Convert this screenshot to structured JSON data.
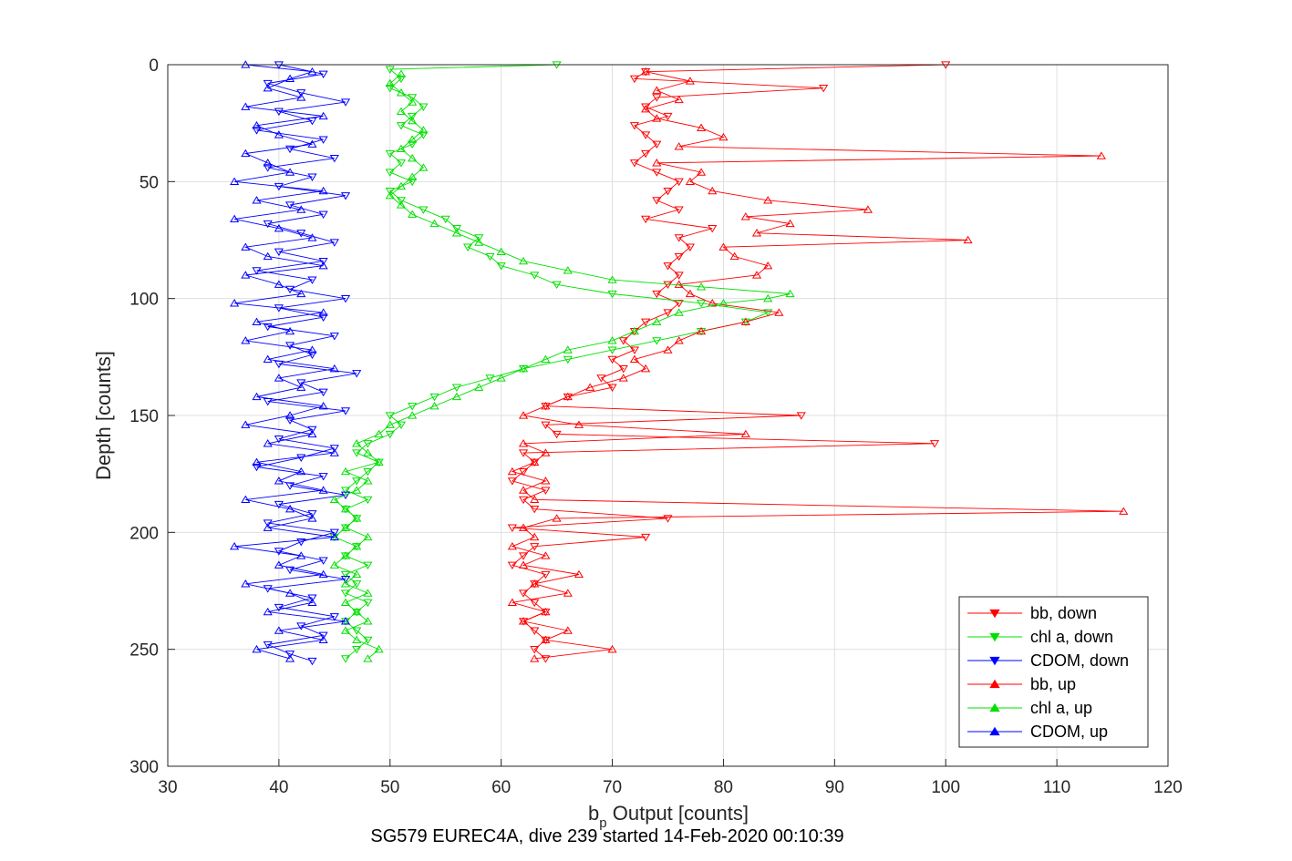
{
  "chart_data": {
    "type": "line",
    "title": "",
    "subtitle": "SG579 EUREC4A, dive 239 started 14-Feb-2020 00:10:39",
    "xlabel": {
      "main": "b",
      "sub": "p",
      "rest": " Output [counts]"
    },
    "ylabel": "Depth [counts]",
    "xlim": [
      30,
      120
    ],
    "ylim": [
      0,
      300
    ],
    "y_reversed": true,
    "grid": true,
    "legend_position": "bottom-right",
    "x_ticks": [
      "30",
      "40",
      "50",
      "60",
      "70",
      "80",
      "90",
      "100",
      "110",
      "120"
    ],
    "y_ticks": [
      "0",
      "50",
      "100",
      "150",
      "200",
      "250",
      "300"
    ],
    "colors": {
      "bb": "#ff0000",
      "chl": "#00e000",
      "cdom": "#0000ff"
    },
    "series": [
      {
        "name": "bb, down",
        "color": "#ff0000",
        "marker": "triangle-down",
        "depth": [
          0,
          3,
          6,
          10,
          14,
          18,
          22,
          26,
          30,
          34,
          38,
          42,
          46,
          50,
          54,
          58,
          62,
          66,
          70,
          74,
          78,
          82,
          86,
          90,
          94,
          98,
          102,
          106,
          110,
          114,
          118,
          122,
          126,
          130,
          134,
          138,
          142,
          146,
          150,
          154,
          158,
          162,
          166,
          170,
          174,
          178,
          182,
          186,
          190,
          194,
          198,
          202,
          206,
          210,
          214,
          218,
          222,
          226,
          230,
          234,
          238,
          242,
          246,
          250,
          254
        ],
        "value": [
          100,
          73,
          72,
          89,
          74,
          73,
          75,
          72,
          73,
          74,
          73,
          72,
          74,
          76,
          75,
          74,
          76,
          73,
          79,
          76,
          77,
          76,
          75,
          76,
          75,
          74,
          76,
          75,
          73,
          72,
          71,
          72,
          70,
          71,
          69,
          70,
          66,
          64,
          87,
          64,
          65,
          99,
          62,
          63,
          62,
          61,
          64,
          62,
          63,
          75,
          61,
          73,
          63,
          62,
          61,
          64,
          63,
          62,
          63,
          64,
          62,
          63,
          64,
          63,
          64
        ]
      },
      {
        "name": "chl a, down",
        "color": "#00e000",
        "marker": "triangle-down",
        "depth": [
          0,
          2,
          6,
          10,
          14,
          18,
          22,
          26,
          30,
          34,
          38,
          42,
          46,
          50,
          54,
          58,
          62,
          66,
          70,
          74,
          78,
          82,
          86,
          90,
          94,
          98,
          102,
          106,
          110,
          114,
          118,
          122,
          126,
          130,
          134,
          138,
          142,
          146,
          150,
          154,
          158,
          162,
          166,
          170,
          174,
          178,
          182,
          186,
          190,
          194,
          198,
          202,
          206,
          210,
          214,
          218,
          222,
          226,
          230,
          234,
          238,
          242,
          246,
          250,
          254
        ],
        "value": [
          65,
          50,
          51,
          50,
          52,
          53,
          52,
          51,
          53,
          52,
          50,
          51,
          50,
          52,
          50,
          51,
          53,
          55,
          56,
          58,
          57,
          59,
          60,
          63,
          65,
          70,
          78,
          84,
          82,
          78,
          74,
          70,
          66,
          62,
          59,
          56,
          54,
          52,
          50,
          51,
          50,
          48,
          47,
          49,
          48,
          47,
          46,
          48,
          46,
          47,
          46,
          45,
          47,
          46,
          48,
          46,
          47,
          46,
          48,
          47,
          46,
          47,
          48,
          47,
          46
        ]
      },
      {
        "name": "CDOM, down",
        "color": "#0000ff",
        "marker": "triangle-down",
        "depth": [
          0,
          4,
          8,
          12,
          16,
          20,
          24,
          28,
          32,
          36,
          40,
          44,
          48,
          52,
          56,
          60,
          64,
          68,
          72,
          76,
          80,
          84,
          88,
          92,
          96,
          100,
          104,
          108,
          112,
          116,
          120,
          124,
          128,
          132,
          136,
          140,
          144,
          148,
          152,
          156,
          160,
          164,
          168,
          172,
          176,
          180,
          184,
          188,
          192,
          196,
          200,
          204,
          208,
          212,
          216,
          220,
          224,
          228,
          232,
          236,
          240,
          244,
          248,
          252,
          255
        ],
        "value": [
          40,
          44,
          39,
          42,
          46,
          40,
          43,
          38,
          44,
          41,
          45,
          39,
          43,
          40,
          46,
          41,
          44,
          39,
          42,
          45,
          40,
          44,
          38,
          43,
          41,
          46,
          40,
          44,
          39,
          45,
          41,
          43,
          40,
          47,
          42,
          44,
          39,
          46,
          41,
          43,
          40,
          45,
          42,
          38,
          44,
          41,
          46,
          40,
          43,
          39,
          45,
          42,
          40,
          44,
          41,
          46,
          39,
          43,
          40,
          45,
          42,
          44,
          39,
          41,
          43
        ]
      },
      {
        "name": "bb, up",
        "color": "#ff0000",
        "marker": "triangle-up",
        "depth": [
          254,
          250,
          246,
          242,
          238,
          234,
          230,
          226,
          222,
          218,
          214,
          210,
          206,
          202,
          198,
          194,
          191,
          186,
          182,
          178,
          174,
          170,
          166,
          162,
          158,
          154,
          150,
          146,
          142,
          138,
          134,
          130,
          126,
          122,
          118,
          114,
          110,
          106,
          102,
          98,
          94,
          90,
          86,
          82,
          78,
          75,
          72,
          68,
          65,
          62,
          58,
          54,
          50,
          46,
          42,
          39,
          35,
          31,
          27,
          23,
          19,
          15,
          11,
          7,
          3
        ],
        "value": [
          63,
          70,
          64,
          66,
          62,
          64,
          61,
          66,
          63,
          67,
          62,
          64,
          61,
          63,
          62,
          65,
          116,
          63,
          62,
          64,
          61,
          63,
          64,
          62,
          82,
          67,
          62,
          64,
          66,
          68,
          71,
          73,
          72,
          75,
          76,
          78,
          82,
          85,
          79,
          77,
          76,
          83,
          84,
          81,
          80,
          102,
          83,
          86,
          82,
          93,
          84,
          79,
          77,
          78,
          74,
          114,
          76,
          80,
          78,
          74,
          73,
          76,
          74,
          77,
          73
        ]
      },
      {
        "name": "chl a, up",
        "color": "#00e000",
        "marker": "triangle-up",
        "depth": [
          254,
          250,
          246,
          242,
          238,
          234,
          230,
          226,
          222,
          218,
          214,
          210,
          206,
          202,
          198,
          194,
          190,
          186,
          182,
          178,
          174,
          170,
          166,
          162,
          158,
          154,
          150,
          146,
          142,
          138,
          134,
          130,
          126,
          122,
          118,
          114,
          110,
          106,
          102,
          100,
          98,
          95,
          92,
          88,
          84,
          80,
          76,
          72,
          68,
          64,
          60,
          56,
          52,
          48,
          44,
          40,
          36,
          32,
          28,
          24,
          20,
          16,
          12,
          8,
          4
        ],
        "value": [
          48,
          49,
          47,
          46,
          48,
          47,
          46,
          48,
          46,
          47,
          45,
          46,
          47,
          48,
          46,
          47,
          46,
          45,
          47,
          48,
          46,
          49,
          48,
          47,
          49,
          50,
          52,
          54,
          56,
          58,
          60,
          62,
          64,
          66,
          70,
          72,
          74,
          76,
          80,
          84,
          86,
          78,
          70,
          66,
          62,
          60,
          58,
          56,
          54,
          52,
          51,
          50,
          51,
          52,
          53,
          52,
          51,
          52,
          53,
          52,
          51,
          52,
          51,
          50,
          51
        ]
      },
      {
        "name": "CDOM, up",
        "color": "#0000ff",
        "marker": "triangle-up",
        "depth": [
          254,
          250,
          246,
          242,
          238,
          234,
          230,
          226,
          222,
          218,
          214,
          210,
          206,
          202,
          198,
          194,
          190,
          186,
          182,
          178,
          174,
          170,
          166,
          162,
          158,
          154,
          150,
          146,
          142,
          138,
          134,
          130,
          126,
          122,
          118,
          114,
          110,
          106,
          102,
          98,
          94,
          90,
          86,
          82,
          78,
          74,
          70,
          66,
          62,
          58,
          54,
          50,
          46,
          42,
          38,
          34,
          30,
          26,
          22,
          18,
          14,
          10,
          6,
          3,
          0
        ],
        "value": [
          41,
          38,
          44,
          40,
          46,
          39,
          43,
          41,
          37,
          44,
          40,
          42,
          36,
          45,
          39,
          43,
          41,
          37,
          44,
          40,
          42,
          38,
          45,
          39,
          43,
          37,
          41,
          44,
          38,
          42,
          40,
          45,
          39,
          43,
          37,
          41,
          38,
          44,
          36,
          42,
          40,
          37,
          44,
          39,
          37,
          43,
          40,
          36,
          42,
          38,
          44,
          36,
          41,
          39,
          37,
          43,
          40,
          38,
          44,
          37,
          42,
          39,
          41,
          43,
          37
        ]
      }
    ]
  }
}
